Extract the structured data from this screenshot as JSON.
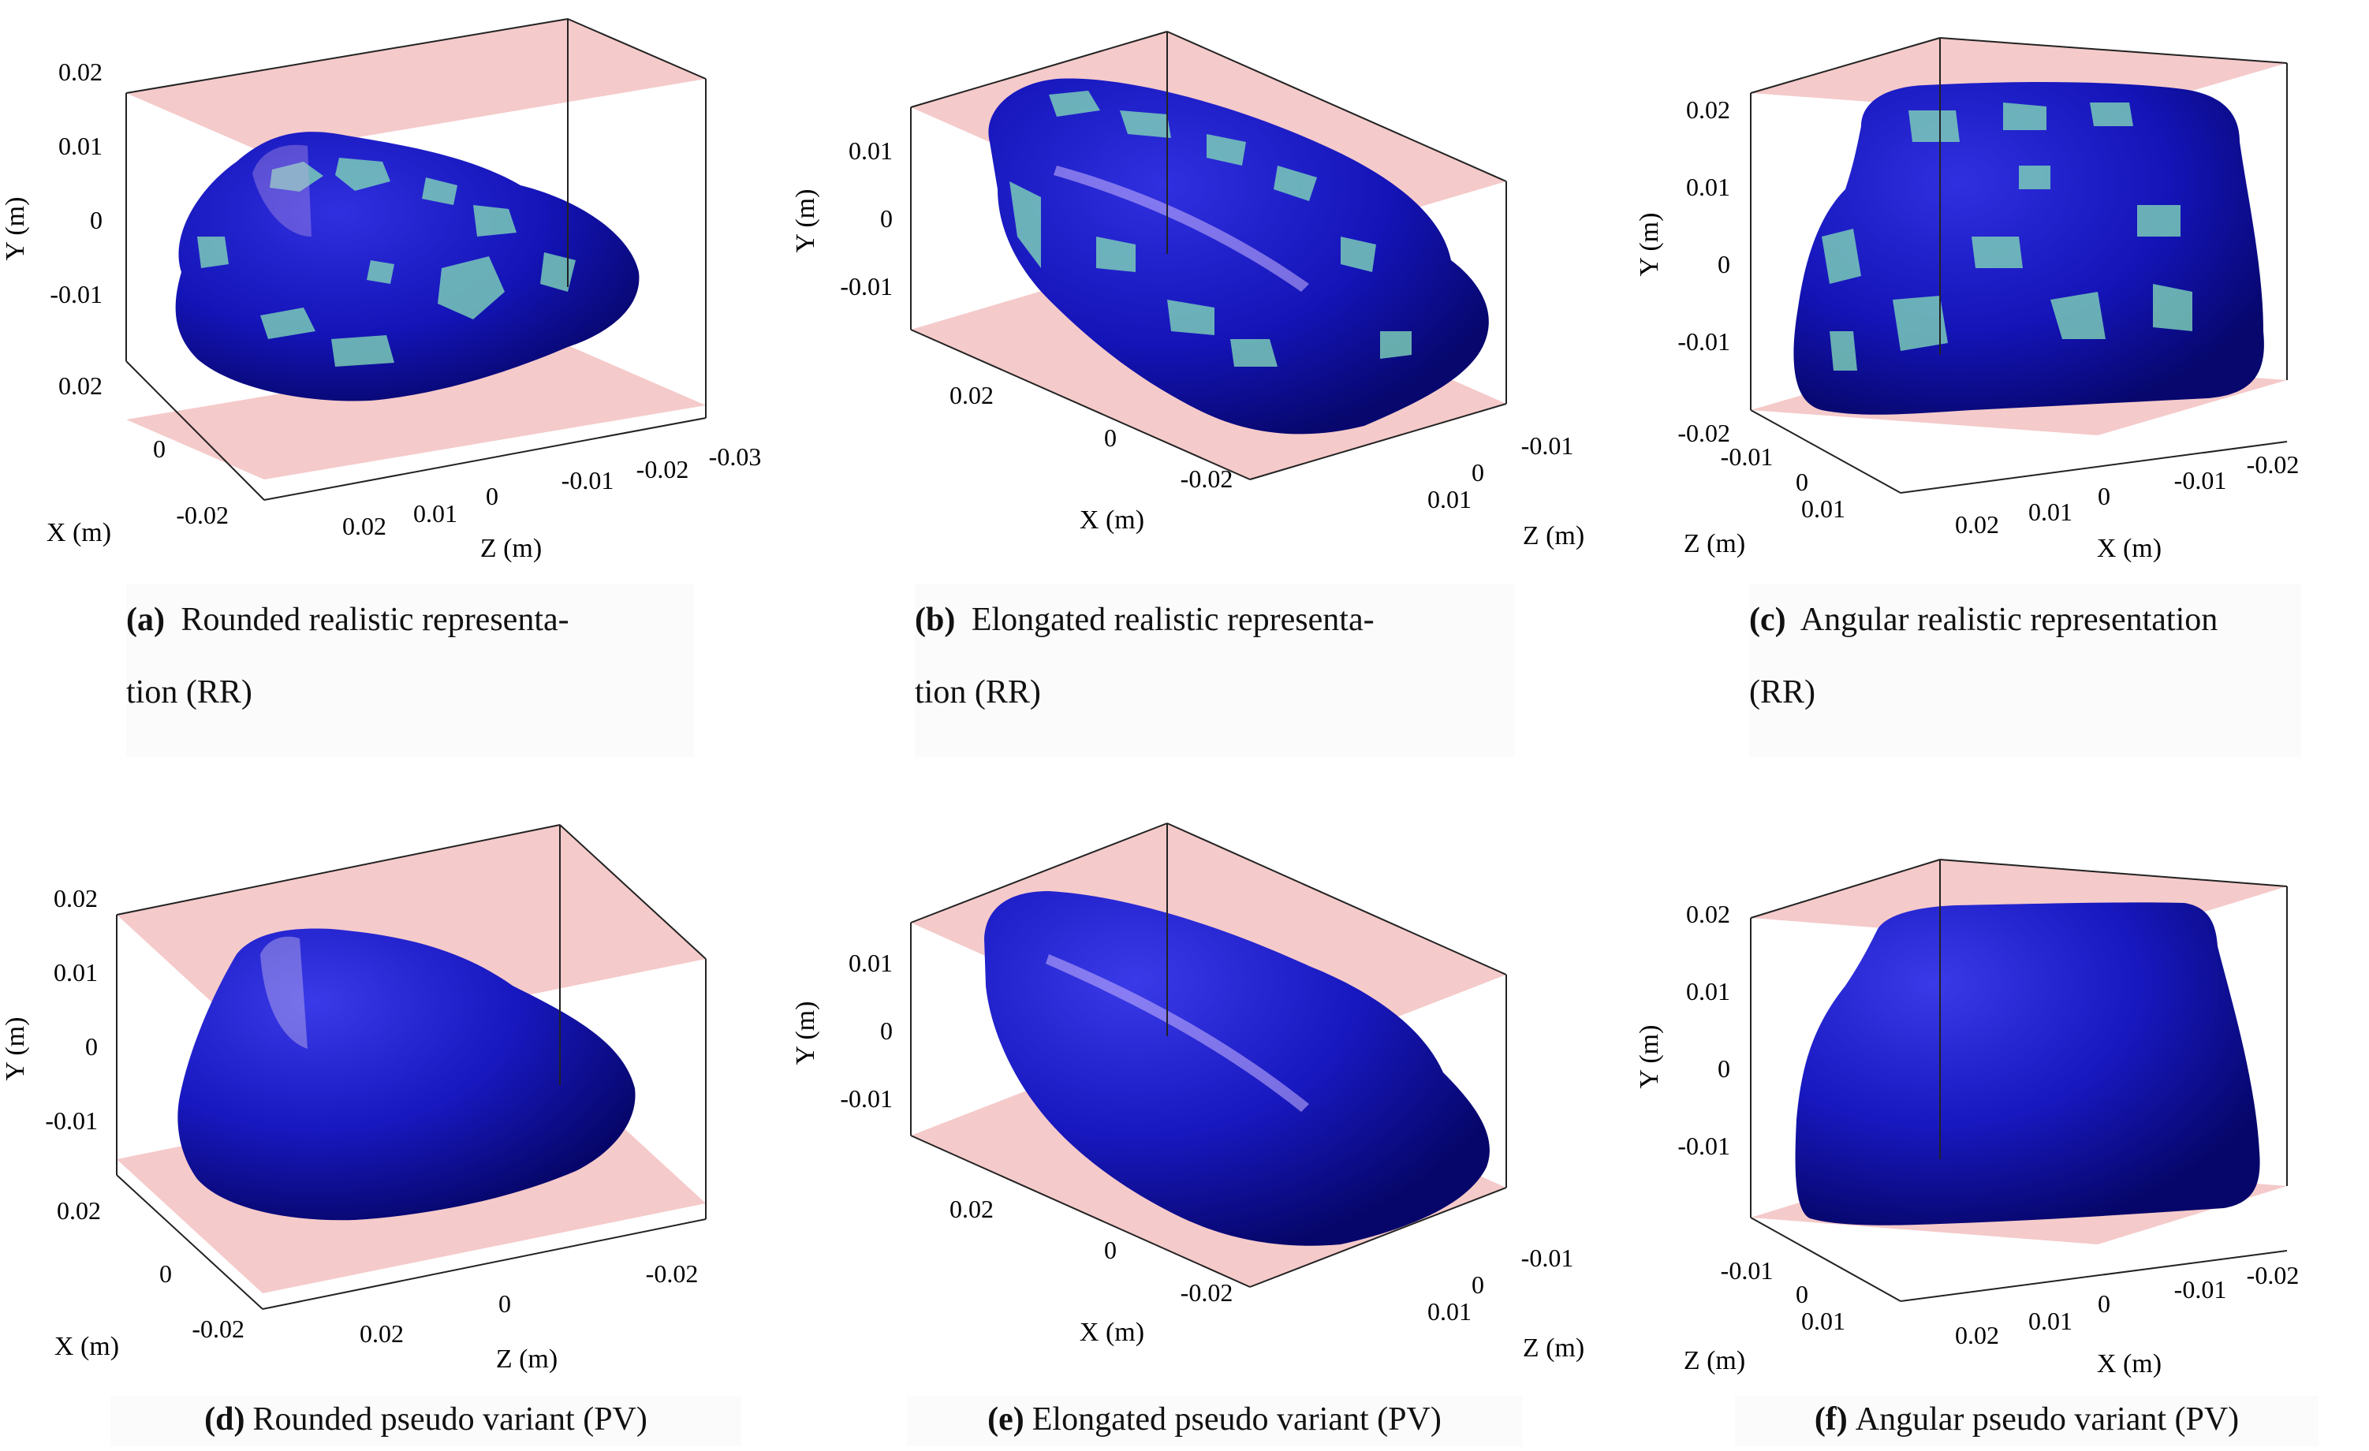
{
  "panels": [
    {
      "id": "a",
      "tag": "(a)",
      "caption_line1": "Rounded realistic representa-",
      "caption_line2": "tion (RR)",
      "style": "realistic",
      "shape": "rounded",
      "ylabel": "Y (m)",
      "xlabel": "X (m)",
      "zlabel": "Z (m)",
      "yticks": [
        "0.02",
        "0.01",
        "0",
        "-0.01"
      ],
      "xticks": [
        "0.02",
        "0",
        "-0.02"
      ],
      "zticks": [
        "0.02",
        "0.01",
        "0",
        "-0.01",
        "-0.02",
        "-0.03"
      ]
    },
    {
      "id": "b",
      "tag": "(b)",
      "caption_line1": "Elongated realistic representa-",
      "caption_line2": "tion (RR)",
      "style": "realistic",
      "shape": "elongated",
      "ylabel": "Y (m)",
      "xlabel": "X (m)",
      "zlabel": "Z (m)",
      "yticks": [
        "0.01",
        "0",
        "-0.01"
      ],
      "xticks": [
        "0.02",
        "0",
        "-0.02"
      ],
      "zticks": [
        "-0.01",
        "0",
        "0.01"
      ]
    },
    {
      "id": "c",
      "tag": "(c)",
      "caption_line1": "Angular realistic representation",
      "caption_line2": "(RR)",
      "style": "realistic",
      "shape": "angular",
      "ylabel": "Y (m)",
      "xlabel": "X (m)",
      "zlabel": "Z (m)",
      "yticks": [
        "0.02",
        "0.01",
        "0",
        "-0.01",
        "-0.02"
      ],
      "zticks": [
        "-0.01",
        "0",
        "0.01"
      ],
      "xticks": [
        "0.02",
        "0.01",
        "0",
        "-0.01",
        "-0.02"
      ]
    },
    {
      "id": "d",
      "tag": "(d)",
      "caption_line1": "Rounded pseudo variant (PV)",
      "style": "pseudo",
      "shape": "rounded",
      "ylabel": "Y (m)",
      "xlabel": "X (m)",
      "zlabel": "Z (m)",
      "yticks": [
        "0.02",
        "0.01",
        "0",
        "-0.01"
      ],
      "xticks": [
        "0.02",
        "0",
        "-0.02"
      ],
      "zticks": [
        "0.02",
        "0",
        "-0.02"
      ]
    },
    {
      "id": "e",
      "tag": "(e)",
      "caption_line1": "Elongated pseudo variant (PV)",
      "style": "pseudo",
      "shape": "elongated",
      "ylabel": "Y (m)",
      "xlabel": "X (m)",
      "zlabel": "Z (m)",
      "yticks": [
        "0.01",
        "0",
        "-0.01"
      ],
      "xticks": [
        "0.02",
        "0",
        "-0.02"
      ],
      "zticks": [
        "-0.01",
        "0",
        "0.01"
      ]
    },
    {
      "id": "f",
      "tag": "(f)",
      "caption_line1": "Angular pseudo variant (PV)",
      "style": "pseudo",
      "shape": "angular",
      "ylabel": "Y (m)",
      "xlabel": "X (m)",
      "zlabel": "Z (m)",
      "yticks": [
        "0.02",
        "0.01",
        "0",
        "-0.01"
      ],
      "zticks": [
        "-0.01",
        "0",
        "0.01"
      ],
      "xticks": [
        "0.02",
        "0.01",
        "0",
        "-0.01",
        "-0.02"
      ]
    }
  ],
  "colors": {
    "particle": "#1212c8",
    "particle_dark": "#0a0a8a",
    "patch": "#7fd6b8",
    "plane": "#f2b8b8"
  }
}
